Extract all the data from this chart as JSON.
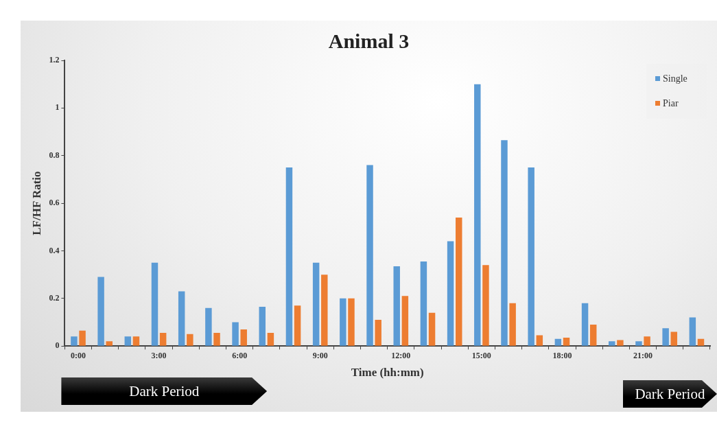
{
  "chart_data": {
    "type": "bar",
    "title": "Animal 3",
    "xlabel": "Time (hh:mm)",
    "ylabel": "LF/HF Ratio",
    "categories": [
      "0:00",
      null,
      null,
      "3:00",
      null,
      null,
      "6:00",
      null,
      null,
      "9:00",
      null,
      null,
      "12:00",
      null,
      null,
      "15:00",
      null,
      null,
      "18:00",
      null,
      null,
      "21:00",
      null,
      null
    ],
    "series": [
      {
        "name": "Single",
        "color": "#5b9bd5",
        "values": [
          0.04,
          0.29,
          0.04,
          0.35,
          0.23,
          0.16,
          0.1,
          0.165,
          0.75,
          0.35,
          0.2,
          0.76,
          0.335,
          0.355,
          0.44,
          1.1,
          0.865,
          0.75,
          0.03,
          0.18,
          0.02,
          0.02,
          0.075,
          0.12
        ]
      },
      {
        "name": "Piar",
        "color": "#ed7d31",
        "values": [
          0.065,
          0.02,
          0.04,
          0.055,
          0.05,
          0.055,
          0.07,
          0.055,
          0.17,
          0.3,
          0.2,
          0.11,
          0.21,
          0.14,
          0.54,
          0.34,
          0.18,
          0.045,
          0.035,
          0.09,
          0.025,
          0.04,
          0.06,
          0.03
        ]
      }
    ],
    "ylim": [
      0,
      1.2
    ],
    "yticks": [
      0,
      {
        "value": 0.2,
        "label": "0.2"
      },
      {
        "value": 0.4,
        "label": "0.4"
      },
      {
        "value": 0.6,
        "label": "0.6"
      },
      {
        "value": 0.8,
        "label": "0.8"
      },
      1,
      {
        "value": 1.2,
        "label": "1.2"
      }
    ],
    "grid": false,
    "legend": "top right",
    "annotations": [
      "Dark Period",
      "Dark Period"
    ]
  }
}
